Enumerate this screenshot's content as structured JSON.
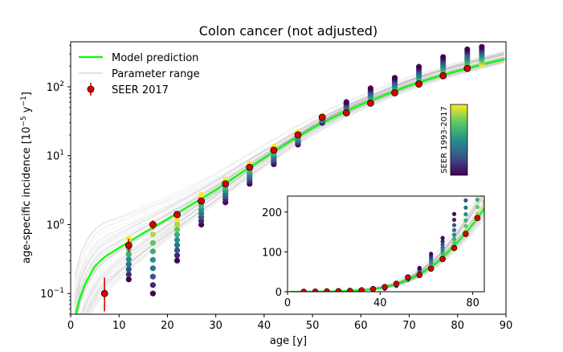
{
  "chart_data": {
    "type": "scatter",
    "title": "Colon cancer (not adjusted)",
    "xlabel": "age [y]",
    "ylabel_main": "age-specific incidence [10",
    "ylabel_exp1": "−5",
    "ylabel_mid": " y",
    "ylabel_exp2": "−1",
    "ylabel_end": "]",
    "xlim": [
      0,
      90
    ],
    "ylim_log": [
      0.05,
      450
    ],
    "x_ticks": [
      "0",
      "10",
      "20",
      "30",
      "40",
      "50",
      "60",
      "70",
      "80",
      "90"
    ],
    "y_tick_base": "10",
    "y_tick_exps": [
      "−1",
      "0",
      "1",
      "2"
    ],
    "legend": {
      "model": "Model prediction",
      "range": "Parameter range",
      "seer": "SEER 2017"
    },
    "colorbar_label": "SEER 1993-2017",
    "series": [
      {
        "name": "SEER 2017",
        "ages": [
          7,
          12,
          17,
          22,
          27,
          32,
          37,
          42,
          47,
          52,
          57,
          62,
          67,
          72,
          77,
          82
        ],
        "values": [
          0.1,
          0.5,
          1.0,
          1.4,
          2.2,
          3.9,
          6.8,
          12,
          20,
          36,
          42,
          58,
          82,
          110,
          145,
          185
        ],
        "err_low": [
          0.055,
          0.4,
          0.85,
          1.25,
          2.05,
          3.7,
          6.5,
          11.6,
          19.4,
          35,
          41,
          57,
          80,
          108,
          142,
          181
        ],
        "err_high": [
          0.17,
          0.62,
          1.15,
          1.55,
          2.35,
          4.1,
          7.1,
          12.4,
          20.6,
          37,
          43,
          59,
          84,
          112,
          148,
          189
        ]
      },
      {
        "name": "Model prediction",
        "ages": [
          1,
          2,
          3,
          5,
          7,
          10,
          15,
          20,
          25,
          30,
          35,
          40,
          45,
          50,
          55,
          60,
          65,
          70,
          75,
          80,
          85,
          90
        ],
        "values": [
          0.05,
          0.09,
          0.14,
          0.25,
          0.34,
          0.46,
          0.75,
          1.2,
          1.95,
          3.2,
          5.5,
          9.3,
          15.5,
          25,
          38,
          55,
          76,
          104,
          135,
          170,
          210,
          255
        ]
      }
    ],
    "seer_history": {
      "ages": [
        7,
        12,
        17,
        22,
        27,
        32,
        37,
        42,
        47,
        52,
        57,
        62,
        67,
        72,
        77,
        82,
        85
      ],
      "low": [
        0.1,
        0.16,
        0.1,
        0.3,
        1.0,
        2.1,
        3.9,
        7.5,
        14.5,
        30,
        42,
        58,
        80,
        105,
        140,
        180,
        210
      ],
      "high": [
        0.1,
        0.62,
        0.95,
        1.2,
        2.7,
        4.5,
        7.7,
        13.5,
        22,
        38,
        60,
        95,
        135,
        195,
        270,
        350,
        380
      ]
    },
    "inset": {
      "type": "line",
      "xlim": [
        0,
        85
      ],
      "ylim": [
        0,
        240
      ],
      "x_ticks": [
        "0",
        "40",
        "80"
      ],
      "y_ticks": [
        "0",
        "100",
        "200"
      ]
    }
  }
}
